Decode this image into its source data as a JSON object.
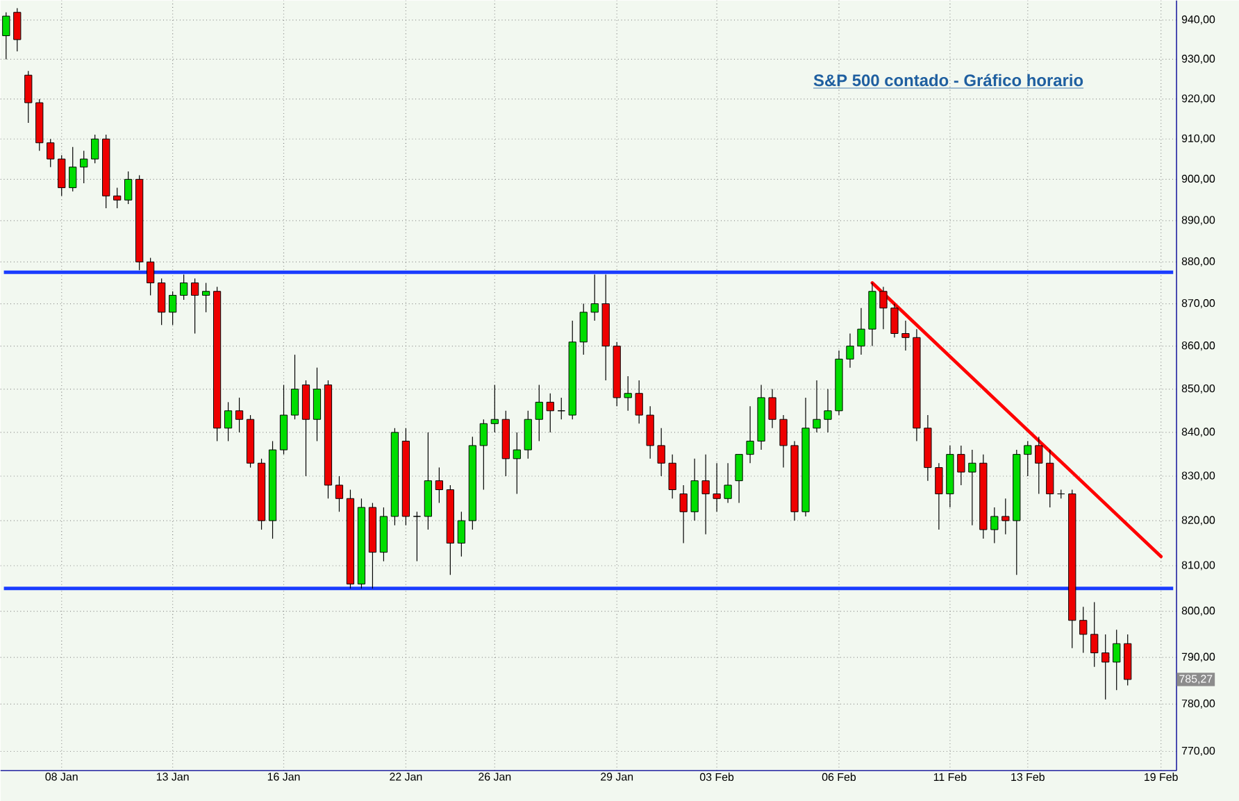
{
  "chart_data": {
    "type": "candlestick",
    "title": "S&P 500 contado - Gráfico horario",
    "categories": [
      null,
      null,
      null,
      null,
      null,
      "08 Jan",
      null,
      null,
      null,
      null,
      null,
      null,
      null,
      null,
      null,
      "13 Jan",
      null,
      null,
      null,
      null,
      null,
      null,
      null,
      null,
      null,
      "16 Jan",
      null,
      null,
      null,
      null,
      null,
      null,
      null,
      null,
      null,
      null,
      "22 Jan",
      null,
      null,
      null,
      null,
      null,
      null,
      null,
      "26 Jan",
      null,
      null,
      null,
      null,
      null,
      null,
      null,
      null,
      null,
      null,
      "29 Jan",
      null,
      null,
      null,
      null,
      null,
      null,
      null,
      null,
      "03 Feb",
      null,
      null,
      null,
      null,
      null,
      null,
      null,
      null,
      null,
      null,
      "06 Feb",
      null,
      null,
      null,
      null,
      null,
      null,
      null,
      null,
      null,
      "11 Feb",
      null,
      null,
      null,
      null,
      null,
      null,
      "13 Feb",
      null,
      null,
      null,
      null,
      null,
      null,
      null,
      null,
      null,
      null,
      null,
      "19 Feb"
    ],
    "ohlc": [
      [
        936,
        942,
        930,
        941
      ],
      [
        942,
        943,
        932,
        935
      ],
      [
        926,
        927,
        914,
        919
      ],
      [
        919,
        920,
        907,
        909
      ],
      [
        909,
        910,
        903,
        905
      ],
      [
        905,
        906,
        896,
        898
      ],
      [
        898,
        908,
        897,
        903
      ],
      [
        903,
        907,
        899,
        905
      ],
      [
        905,
        911,
        904,
        910
      ],
      [
        910,
        911,
        893,
        896
      ],
      [
        896,
        898,
        893,
        895
      ],
      [
        895,
        902,
        894,
        900
      ],
      [
        900,
        901,
        878,
        880
      ],
      [
        880,
        881,
        872,
        875
      ],
      [
        875,
        876,
        865,
        868
      ],
      [
        868,
        873,
        865,
        872
      ],
      [
        872,
        877,
        871,
        875
      ],
      [
        875,
        876,
        863,
        872
      ],
      [
        872,
        875,
        868,
        873
      ],
      [
        873,
        874,
        838,
        841
      ],
      [
        841,
        847,
        838,
        845
      ],
      [
        845,
        848,
        840,
        843
      ],
      [
        843,
        844,
        832,
        833
      ],
      [
        833,
        834,
        818,
        820
      ],
      [
        820,
        838,
        816,
        836
      ],
      [
        836,
        851,
        835,
        844
      ],
      [
        844,
        858,
        843,
        850
      ],
      [
        851,
        852,
        830,
        843
      ],
      [
        843,
        855,
        838,
        850
      ],
      [
        851,
        852,
        825,
        828
      ],
      [
        828,
        830,
        822,
        825
      ],
      [
        825,
        827,
        805,
        806
      ],
      [
        806,
        825,
        805,
        823
      ],
      [
        823,
        824,
        805,
        813
      ],
      [
        813,
        823,
        811,
        821
      ],
      [
        821,
        841,
        819,
        840
      ],
      [
        838,
        841,
        819,
        821
      ],
      [
        821,
        822,
        811,
        821
      ],
      [
        821,
        840,
        818,
        829
      ],
      [
        829,
        832,
        824,
        827
      ],
      [
        827,
        828,
        808,
        815
      ],
      [
        815,
        822,
        812,
        820
      ],
      [
        820,
        839,
        818,
        837
      ],
      [
        837,
        843,
        827,
        842
      ],
      [
        842,
        851,
        840,
        843
      ],
      [
        843,
        845,
        830,
        834
      ],
      [
        834,
        840,
        826,
        836
      ],
      [
        836,
        845,
        834,
        843
      ],
      [
        843,
        851,
        838,
        847
      ],
      [
        847,
        849,
        840,
        845
      ],
      [
        845,
        848,
        843,
        845
      ],
      [
        844,
        866,
        843,
        861
      ],
      [
        861,
        870,
        858,
        868
      ],
      [
        868,
        877,
        866,
        870
      ],
      [
        870,
        877,
        852,
        860
      ],
      [
        860,
        861,
        846,
        848
      ],
      [
        848,
        853,
        845,
        849
      ],
      [
        849,
        852,
        842,
        844
      ],
      [
        844,
        846,
        834,
        837
      ],
      [
        837,
        841,
        830,
        833
      ],
      [
        833,
        835,
        825,
        827
      ],
      [
        826,
        828,
        815,
        822
      ],
      [
        822,
        834,
        820,
        829
      ],
      [
        829,
        835,
        817,
        826
      ],
      [
        826,
        833,
        822,
        825
      ],
      [
        825,
        833,
        824,
        828
      ],
      [
        829,
        835,
        824,
        835
      ],
      [
        835,
        846,
        833,
        838
      ],
      [
        838,
        851,
        836,
        848
      ],
      [
        848,
        850,
        841,
        843
      ],
      [
        843,
        844,
        832,
        837
      ],
      [
        837,
        838,
        820,
        822
      ],
      [
        822,
        848,
        821,
        841
      ],
      [
        841,
        852,
        840,
        843
      ],
      [
        843,
        850,
        840,
        845
      ],
      [
        845,
        859,
        844,
        857
      ],
      [
        857,
        863,
        855,
        860
      ],
      [
        860,
        869,
        858,
        864
      ],
      [
        864,
        875,
        860,
        873
      ],
      [
        873,
        874,
        864,
        869
      ],
      [
        869,
        870,
        862,
        863
      ],
      [
        863,
        866,
        859,
        862
      ],
      [
        862,
        864,
        838,
        841
      ],
      [
        841,
        844,
        829,
        832
      ],
      [
        832,
        833,
        818,
        826
      ],
      [
        826,
        837,
        823,
        835
      ],
      [
        835,
        837,
        828,
        831
      ],
      [
        831,
        836,
        819,
        833
      ],
      [
        833,
        835,
        816,
        818
      ],
      [
        818,
        823,
        815,
        821
      ],
      [
        821,
        825,
        817,
        820
      ],
      [
        820,
        836,
        808,
        835
      ],
      [
        835,
        838,
        830,
        837
      ],
      [
        837,
        839,
        826,
        833
      ],
      [
        833,
        836,
        823,
        826
      ],
      [
        826,
        827,
        825,
        826
      ],
      [
        826,
        827,
        792,
        798
      ],
      [
        798,
        801,
        791,
        795
      ],
      [
        795,
        802,
        788,
        791
      ],
      [
        791,
        795,
        781,
        789
      ],
      [
        789,
        796,
        783,
        793
      ],
      [
        793,
        795,
        784,
        785.27
      ],
      null,
      null,
      null
    ],
    "series": [
      {
        "type": "line",
        "color": "#ff0000",
        "values": [
          null,
          null,
          null,
          null,
          null,
          null,
          null,
          null,
          null,
          null,
          null,
          null,
          null,
          null,
          null,
          null,
          null,
          null,
          null,
          null,
          null,
          null,
          null,
          null,
          null,
          null,
          null,
          null,
          null,
          null,
          null,
          null,
          null,
          null,
          null,
          null,
          null,
          null,
          null,
          null,
          null,
          null,
          null,
          null,
          null,
          null,
          null,
          null,
          null,
          null,
          null,
          null,
          null,
          null,
          null,
          null,
          null,
          null,
          null,
          null,
          null,
          null,
          null,
          null,
          null,
          null,
          null,
          null,
          null,
          null,
          null,
          null,
          null,
          null,
          null,
          null,
          null,
          null,
          875,
          null,
          null,
          null,
          null,
          null,
          null,
          null,
          null,
          null,
          null,
          null,
          null,
          null,
          null,
          null,
          null,
          null,
          null,
          null,
          null,
          null,
          null,
          null,
          null,
          null,
          812
        ]
      }
    ],
    "ylim": [
      766,
      945
    ],
    "yticks": [
      {
        "value": 770,
        "label": "770,00"
      },
      {
        "value": 780,
        "label": "780,00"
      },
      {
        "value": 790,
        "label": "790,00"
      },
      {
        "value": 800,
        "label": "800,00"
      },
      {
        "value": 810,
        "label": "810,00"
      },
      {
        "value": 820,
        "label": "820,00"
      },
      {
        "value": 830,
        "label": "830,00"
      },
      {
        "value": 840,
        "label": "840,00"
      },
      {
        "value": 850,
        "label": "850,00"
      },
      {
        "value": 860,
        "label": "860,00"
      },
      {
        "value": 870,
        "label": "870,00"
      },
      {
        "value": 880,
        "label": "880,00"
      },
      {
        "value": 890,
        "label": "890,00"
      },
      {
        "value": 900,
        "label": "900,00"
      },
      {
        "value": 910,
        "label": "910,00"
      },
      {
        "value": 920,
        "label": "920,00"
      },
      {
        "value": 930,
        "label": "930,00"
      },
      {
        "value": 940,
        "label": "940,00"
      }
    ],
    "log": true,
    "grid": true,
    "ref_lines": [
      {
        "axis": "y",
        "value": 877.5,
        "color": "#1a3cff"
      },
      {
        "axis": "y",
        "value": 805,
        "color": "#1a3cff"
      }
    ],
    "annotations": [
      {
        "text": "785,27",
        "y": 785.27
      }
    ]
  }
}
